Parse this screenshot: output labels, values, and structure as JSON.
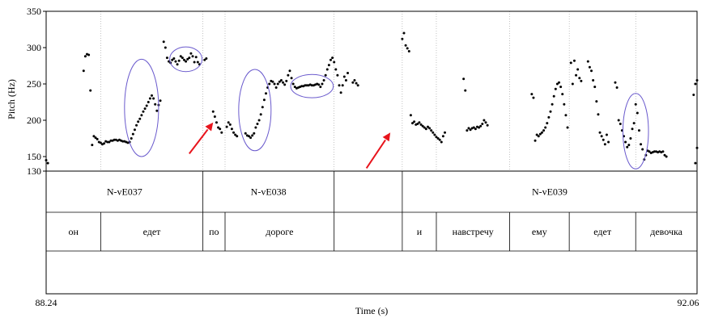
{
  "chart_data": {
    "type": "scatter",
    "title": "",
    "xlabel": "Time (s)",
    "ylabel": "Pitch (Hz)",
    "xlim": [
      88.24,
      92.06
    ],
    "ylim": [
      130,
      350
    ],
    "x_tick_labels": [
      "88.24",
      "92.06"
    ],
    "y_ticks": [
      130,
      150,
      200,
      250,
      300,
      350
    ],
    "point_color": "#000000",
    "ellipse_color": "#6a5acd",
    "arrow_color": "#e8141c",
    "gridlines": "dotted vertical at interval boundaries",
    "series": [
      {
        "values": [
          [
            88.24,
            145
          ],
          [
            88.25,
            141
          ],
          [
            88.46,
            268
          ],
          [
            88.47,
            288
          ],
          [
            88.48,
            291
          ],
          [
            88.49,
            290
          ],
          [
            88.5,
            241
          ],
          [
            88.51,
            166
          ],
          [
            88.52,
            178
          ],
          [
            88.53,
            176
          ],
          [
            88.54,
            174
          ],
          [
            88.55,
            170
          ],
          [
            88.56,
            169
          ],
          [
            88.57,
            167
          ],
          [
            88.58,
            168
          ],
          [
            88.59,
            171
          ],
          [
            88.6,
            170
          ],
          [
            88.61,
            170
          ],
          [
            88.62,
            172
          ],
          [
            88.63,
            172
          ],
          [
            88.64,
            173
          ],
          [
            88.65,
            173
          ],
          [
            88.66,
            172
          ],
          [
            88.67,
            173
          ],
          [
            88.68,
            172
          ],
          [
            88.69,
            171
          ],
          [
            88.7,
            171
          ],
          [
            88.71,
            170
          ],
          [
            88.72,
            169
          ],
          [
            88.73,
            170
          ],
          [
            88.74,
            175
          ],
          [
            88.75,
            181
          ],
          [
            88.76,
            187
          ],
          [
            88.77,
            193
          ],
          [
            88.78,
            198
          ],
          [
            88.79,
            202
          ],
          [
            88.8,
            207
          ],
          [
            88.81,
            212
          ],
          [
            88.82,
            216
          ],
          [
            88.83,
            220
          ],
          [
            88.84,
            225
          ],
          [
            88.85,
            230
          ],
          [
            88.86,
            234
          ],
          [
            88.87,
            230
          ],
          [
            88.88,
            222
          ],
          [
            88.89,
            213
          ],
          [
            88.9,
            221
          ],
          [
            88.91,
            227
          ],
          [
            88.93,
            308
          ],
          [
            88.94,
            300
          ],
          [
            88.95,
            286
          ],
          [
            88.96,
            281
          ],
          [
            88.97,
            279
          ],
          [
            88.98,
            283
          ],
          [
            88.99,
            285
          ],
          [
            89.0,
            281
          ],
          [
            89.01,
            277
          ],
          [
            89.02,
            282
          ],
          [
            89.03,
            288
          ],
          [
            89.04,
            286
          ],
          [
            89.05,
            283
          ],
          [
            89.06,
            281
          ],
          [
            89.07,
            284
          ],
          [
            89.08,
            286
          ],
          [
            89.09,
            292
          ],
          [
            89.1,
            288
          ],
          [
            89.11,
            280
          ],
          [
            89.12,
            287
          ],
          [
            89.13,
            280
          ],
          [
            89.14,
            277
          ],
          [
            89.17,
            283
          ],
          [
            89.18,
            285
          ],
          [
            89.22,
            212
          ],
          [
            89.23,
            205
          ],
          [
            89.24,
            197
          ],
          [
            89.25,
            190
          ],
          [
            89.26,
            188
          ],
          [
            89.27,
            183
          ],
          [
            89.3,
            191
          ],
          [
            89.31,
            197
          ],
          [
            89.32,
            194
          ],
          [
            89.33,
            188
          ],
          [
            89.34,
            183
          ],
          [
            89.35,
            180
          ],
          [
            89.36,
            178
          ],
          [
            89.41,
            182
          ],
          [
            89.42,
            179
          ],
          [
            89.43,
            178
          ],
          [
            89.44,
            176
          ],
          [
            89.45,
            179
          ],
          [
            89.46,
            182
          ],
          [
            89.47,
            190
          ],
          [
            89.48,
            195
          ],
          [
            89.49,
            200
          ],
          [
            89.5,
            208
          ],
          [
            89.51,
            218
          ],
          [
            89.52,
            228
          ],
          [
            89.53,
            237
          ],
          [
            89.54,
            245
          ],
          [
            89.55,
            250
          ],
          [
            89.56,
            254
          ],
          [
            89.57,
            253
          ],
          [
            89.58,
            250
          ],
          [
            89.59,
            245
          ],
          [
            89.6,
            250
          ],
          [
            89.61,
            253
          ],
          [
            89.62,
            255
          ],
          [
            89.63,
            252
          ],
          [
            89.64,
            249
          ],
          [
            89.65,
            254
          ],
          [
            89.66,
            262
          ],
          [
            89.67,
            268
          ],
          [
            89.68,
            258
          ],
          [
            89.69,
            250
          ],
          [
            89.7,
            246
          ],
          [
            89.71,
            244
          ],
          [
            89.72,
            245
          ],
          [
            89.73,
            246
          ],
          [
            89.74,
            247
          ],
          [
            89.75,
            247
          ],
          [
            89.76,
            248
          ],
          [
            89.77,
            248
          ],
          [
            89.78,
            248
          ],
          [
            89.79,
            249
          ],
          [
            89.8,
            248
          ],
          [
            89.81,
            248
          ],
          [
            89.82,
            249
          ],
          [
            89.83,
            250
          ],
          [
            89.84,
            249
          ],
          [
            89.85,
            246
          ],
          [
            89.86,
            250
          ],
          [
            89.87,
            255
          ],
          [
            89.88,
            262
          ],
          [
            89.89,
            270
          ],
          [
            89.9,
            276
          ],
          [
            89.91,
            283
          ],
          [
            89.92,
            286
          ],
          [
            89.93,
            280
          ],
          [
            89.94,
            270
          ],
          [
            89.95,
            262
          ],
          [
            89.96,
            248
          ],
          [
            89.97,
            238
          ],
          [
            89.98,
            248
          ],
          [
            89.99,
            260
          ],
          [
            90.0,
            255
          ],
          [
            90.01,
            265
          ],
          [
            90.04,
            252
          ],
          [
            90.05,
            255
          ],
          [
            90.06,
            251
          ],
          [
            90.07,
            248
          ],
          [
            90.33,
            312
          ],
          [
            90.34,
            320
          ],
          [
            90.35,
            303
          ],
          [
            90.36,
            299
          ],
          [
            90.37,
            295
          ],
          [
            90.38,
            207
          ],
          [
            90.39,
            196
          ],
          [
            90.4,
            198
          ],
          [
            90.41,
            194
          ],
          [
            90.42,
            195
          ],
          [
            90.43,
            197
          ],
          [
            90.44,
            194
          ],
          [
            90.45,
            192
          ],
          [
            90.46,
            190
          ],
          [
            90.47,
            188
          ],
          [
            90.48,
            191
          ],
          [
            90.49,
            189
          ],
          [
            90.5,
            186
          ],
          [
            90.51,
            183
          ],
          [
            90.52,
            180
          ],
          [
            90.53,
            177
          ],
          [
            90.54,
            175
          ],
          [
            90.55,
            173
          ],
          [
            90.56,
            170
          ],
          [
            90.57,
            178
          ],
          [
            90.58,
            183
          ],
          [
            90.69,
            257
          ],
          [
            90.7,
            241
          ],
          [
            90.71,
            186
          ],
          [
            90.72,
            189
          ],
          [
            90.73,
            187
          ],
          [
            90.74,
            189
          ],
          [
            90.75,
            190
          ],
          [
            90.76,
            188
          ],
          [
            90.77,
            191
          ],
          [
            90.78,
            190
          ],
          [
            90.79,
            192
          ],
          [
            90.8,
            195
          ],
          [
            90.81,
            200
          ],
          [
            90.82,
            197
          ],
          [
            90.83,
            193
          ],
          [
            91.09,
            236
          ],
          [
            91.1,
            231
          ],
          [
            91.11,
            172
          ],
          [
            91.12,
            180
          ],
          [
            91.13,
            178
          ],
          [
            91.14,
            181
          ],
          [
            91.15,
            183
          ],
          [
            91.16,
            186
          ],
          [
            91.17,
            190
          ],
          [
            91.18,
            196
          ],
          [
            91.19,
            204
          ],
          [
            91.2,
            212
          ],
          [
            91.21,
            222
          ],
          [
            91.22,
            233
          ],
          [
            91.23,
            243
          ],
          [
            91.24,
            250
          ],
          [
            91.25,
            252
          ],
          [
            91.26,
            246
          ],
          [
            91.27,
            236
          ],
          [
            91.28,
            222
          ],
          [
            91.29,
            207
          ],
          [
            91.3,
            190
          ],
          [
            91.32,
            279
          ],
          [
            91.33,
            250
          ],
          [
            91.34,
            282
          ],
          [
            91.35,
            262
          ],
          [
            91.36,
            270
          ],
          [
            91.37,
            258
          ],
          [
            91.38,
            254
          ],
          [
            91.42,
            281
          ],
          [
            91.43,
            273
          ],
          [
            91.44,
            268
          ],
          [
            91.45,
            255
          ],
          [
            91.46,
            246
          ],
          [
            91.47,
            226
          ],
          [
            91.48,
            208
          ],
          [
            91.49,
            183
          ],
          [
            91.5,
            178
          ],
          [
            91.51,
            173
          ],
          [
            91.52,
            167
          ],
          [
            91.53,
            180
          ],
          [
            91.54,
            170
          ],
          [
            91.58,
            252
          ],
          [
            91.59,
            245
          ],
          [
            91.6,
            200
          ],
          [
            91.61,
            195
          ],
          [
            91.62,
            186
          ],
          [
            91.63,
            178
          ],
          [
            91.64,
            170
          ],
          [
            91.65,
            163
          ],
          [
            91.66,
            166
          ],
          [
            91.67,
            175
          ],
          [
            91.68,
            188
          ],
          [
            91.69,
            196
          ],
          [
            91.7,
            222
          ],
          [
            91.71,
            210
          ],
          [
            91.72,
            186
          ],
          [
            91.73,
            167
          ],
          [
            91.74,
            160
          ],
          [
            91.75,
            146
          ],
          [
            91.76,
            152
          ],
          [
            91.77,
            158
          ],
          [
            91.78,
            157
          ],
          [
            91.79,
            155
          ],
          [
            91.8,
            156
          ],
          [
            91.81,
            157
          ],
          [
            91.82,
            157
          ],
          [
            91.83,
            156
          ],
          [
            91.84,
            157
          ],
          [
            91.85,
            156
          ],
          [
            91.86,
            157
          ],
          [
            91.87,
            152
          ],
          [
            91.88,
            150
          ],
          [
            92.04,
            235
          ],
          [
            92.05,
            250
          ],
          [
            92.06,
            255
          ],
          [
            92.06,
            162
          ],
          [
            92.05,
            141
          ]
        ]
      }
    ],
    "ellipses": [
      {
        "cx": 88.8,
        "cy": 217,
        "rx": 0.1,
        "ry": 67
      },
      {
        "cx": 89.06,
        "cy": 284,
        "rx": 0.095,
        "ry": 17
      },
      {
        "cx": 89.465,
        "cy": 214,
        "rx": 0.095,
        "ry": 56
      },
      {
        "cx": 89.8,
        "cy": 247,
        "rx": 0.125,
        "ry": 16
      },
      {
        "cx": 91.7,
        "cy": 185,
        "rx": 0.075,
        "ry": 52
      }
    ],
    "arrows": [
      {
        "from": [
          89.08,
          154
        ],
        "to": [
          89.22,
          197
        ]
      },
      {
        "from": [
          90.12,
          134
        ],
        "to": [
          90.26,
          183
        ]
      }
    ],
    "annotation_tiers": [
      {
        "intervals": [
          {
            "start": 88.24,
            "end": 89.16,
            "label": "N-vE037"
          },
          {
            "start": 89.16,
            "end": 89.93,
            "label": "N-vE038"
          },
          {
            "start": 89.93,
            "end": 90.33,
            "label": ""
          },
          {
            "start": 90.33,
            "end": 92.06,
            "label": "N-vE039"
          }
        ]
      },
      {
        "intervals": [
          {
            "start": 88.24,
            "end": 88.56,
            "label": "он"
          },
          {
            "start": 88.56,
            "end": 89.16,
            "label": "едет"
          },
          {
            "start": 89.16,
            "end": 89.29,
            "label": "по"
          },
          {
            "start": 89.29,
            "end": 89.93,
            "label": "дороге"
          },
          {
            "start": 89.93,
            "end": 90.33,
            "label": ""
          },
          {
            "start": 90.33,
            "end": 90.53,
            "label": "и"
          },
          {
            "start": 90.53,
            "end": 90.96,
            "label": "навстречу"
          },
          {
            "start": 90.96,
            "end": 91.31,
            "label": "ему"
          },
          {
            "start": 91.31,
            "end": 91.7,
            "label": "едет"
          },
          {
            "start": 91.7,
            "end": 92.06,
            "label": "девочка"
          }
        ]
      },
      {
        "intervals": []
      }
    ]
  }
}
